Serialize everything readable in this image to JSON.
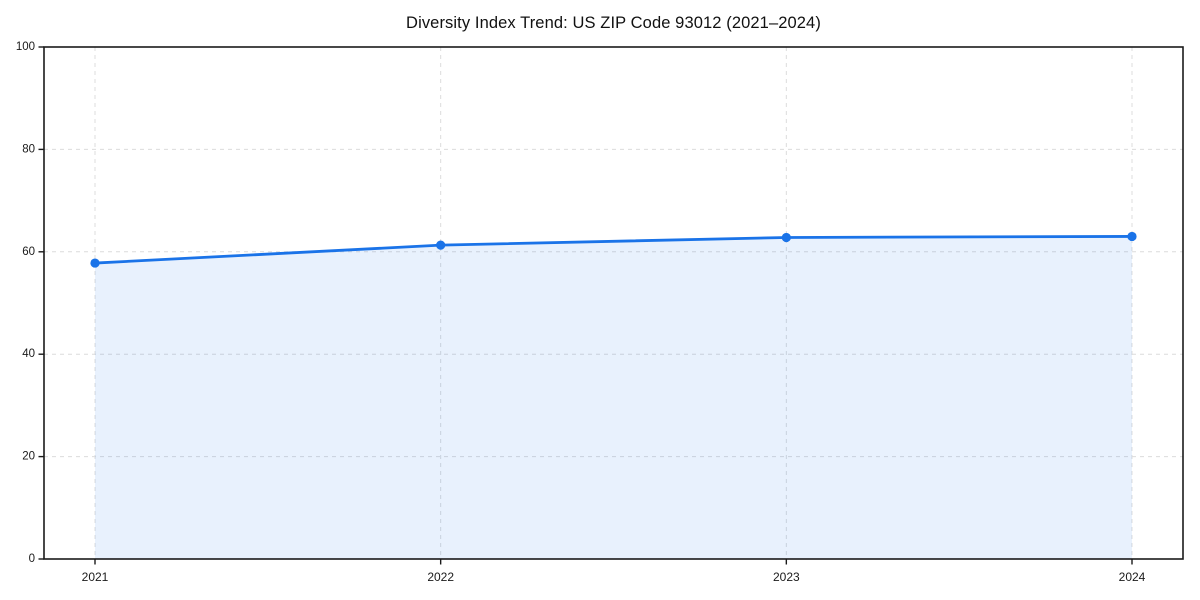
{
  "page": {
    "background": "#ffffff"
  },
  "chart_data": {
    "type": "line",
    "title": "Diversity Index Trend: US ZIP Code 93012 (2021–2024)",
    "x": [
      "2021",
      "2022",
      "2023",
      "2024"
    ],
    "series": [
      {
        "name": "Diversity Index",
        "values": [
          57.8,
          61.3,
          62.8,
          63.0
        ]
      }
    ],
    "xlabel": "",
    "ylabel": "",
    "ylim": [
      0,
      100
    ],
    "yticks": [
      0,
      20,
      40,
      60,
      80,
      100
    ],
    "grid": true,
    "grid_style": "dashed",
    "area_fill": true,
    "legend": "none",
    "markers": true,
    "colors": {
      "line": "#1a73e8",
      "fill": "#1a73e8",
      "fill_opacity": 0.1,
      "grid": "#dcdcdc",
      "axis": "#1a1a1a",
      "tick_text": "#1a1a1a",
      "title_text": "#111111"
    }
  }
}
